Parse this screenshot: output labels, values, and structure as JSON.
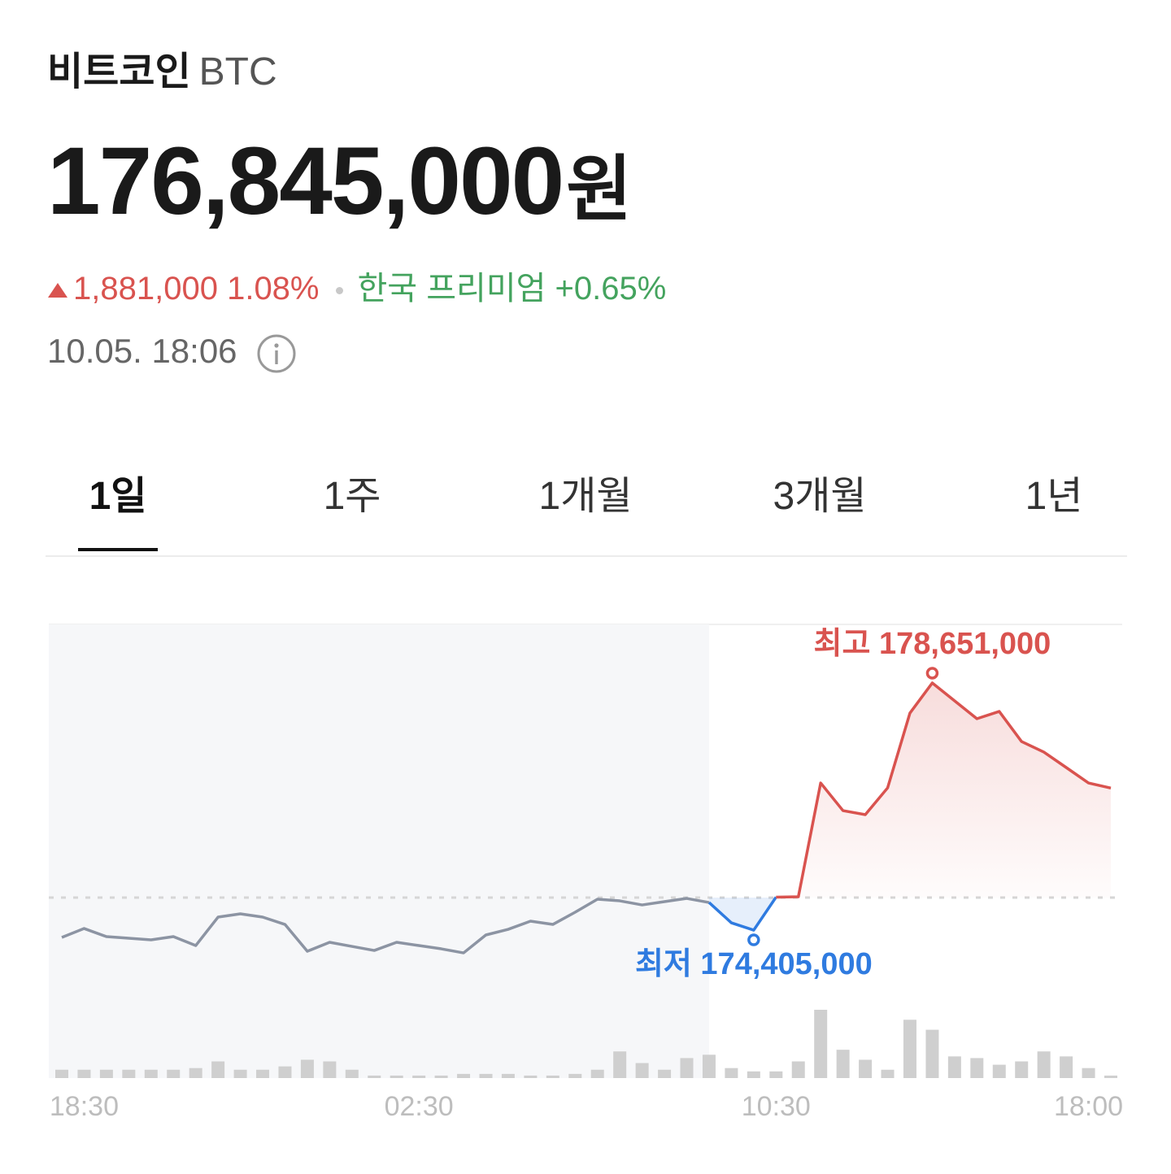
{
  "header": {
    "name": "비트코인",
    "symbol": "BTC"
  },
  "price": {
    "amount": "176,845,000",
    "unit": "원"
  },
  "change": {
    "amount": "1,881,000",
    "rate": "1.08%",
    "premium_label": "한국 프리미엄",
    "premium": "+0.65%"
  },
  "timestamp": "10.05. 18:06",
  "tabs": [
    "1일",
    "1주",
    "1개월",
    "3개월",
    "1년"
  ],
  "selected_tab": 0,
  "chart_data": {
    "type": "line",
    "categories": [
      null,
      "18:30",
      null,
      null,
      null,
      null,
      null,
      null,
      null,
      null,
      null,
      null,
      null,
      null,
      null,
      null,
      "02:30",
      null,
      null,
      null,
      null,
      null,
      null,
      null,
      null,
      null,
      null,
      null,
      null,
      null,
      null,
      null,
      "10:30",
      null,
      null,
      null,
      null,
      null,
      null,
      null,
      null,
      null,
      null,
      null,
      null,
      null,
      "18:00",
      null
    ],
    "values": [
      174280000,
      174433000,
      174294000,
      174266000,
      174238000,
      174294000,
      174140000,
      174629000,
      174685000,
      174629000,
      174503000,
      174042000,
      174196000,
      174126000,
      174056000,
      174196000,
      174140000,
      174084000,
      174014000,
      174322000,
      174419000,
      174559000,
      174503000,
      174713000,
      174936000,
      174908000,
      174838000,
      174894000,
      174950000,
      174880000,
      174531000,
      174405000,
      174971000,
      174978000,
      176933000,
      176458000,
      176389000,
      176849000,
      178134000,
      178651000,
      178344000,
      178037000,
      178162000,
      177645000,
      177464000,
      177199000,
      176933000,
      176845000
    ],
    "value_labels": [
      null,
      null,
      null,
      null,
      null,
      null,
      null,
      null,
      null,
      null,
      null,
      null,
      null,
      null,
      null,
      null,
      null,
      null,
      null,
      null,
      null,
      null,
      null,
      null,
      null,
      null,
      null,
      null,
      null,
      null,
      null,
      "174,405,000",
      null,
      null,
      null,
      null,
      null,
      null,
      null,
      "178,651,000",
      null,
      null,
      null,
      null,
      null,
      null,
      null,
      null
    ],
    "annotations": {
      "high": "최고",
      "low": "최저"
    },
    "volume": [
      10,
      10,
      10,
      10,
      10,
      10,
      12,
      20,
      10,
      10,
      14,
      22,
      20,
      10,
      3,
      3,
      3,
      3,
      5,
      5,
      5,
      3,
      3,
      5,
      10,
      32,
      18,
      10,
      24,
      28,
      12,
      8,
      8,
      20,
      82,
      34,
      22,
      10,
      70,
      58,
      26,
      24,
      16,
      20,
      32,
      26,
      12,
      3
    ],
    "baseline": 174964000,
    "shaded_through": 29,
    "ylim": [
      171864000,
      179657000
    ],
    "past_color": "#8c94a3",
    "up_color": "#d9534f",
    "down_color": "#2f7be0",
    "volume_color": "#cfcfcf",
    "shade_color": "#f6f7f9"
  }
}
